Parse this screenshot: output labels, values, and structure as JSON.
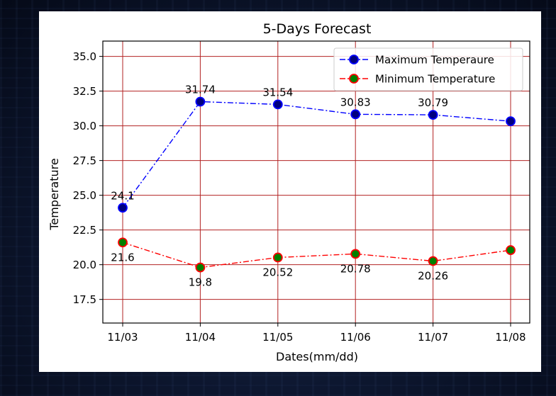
{
  "chart_data": {
    "type": "line",
    "title": "5-Days Forecast",
    "xlabel": "Dates(mm/dd)",
    "ylabel": "Temperature",
    "categories": [
      "11/03",
      "11/04",
      "11/05",
      "11/06",
      "11/07",
      "11/08"
    ],
    "ylim": [
      15.8,
      36.1
    ],
    "yticks": [
      "17.5",
      "20.0",
      "22.5",
      "25.0",
      "27.5",
      "30.0",
      "32.5",
      "35.0"
    ],
    "grid": true,
    "legend_position": "top-right",
    "series": [
      {
        "name": "Maximum Temperaure",
        "values": [
          24.1,
          31.74,
          31.54,
          30.83,
          30.79,
          30.33
        ],
        "labels": [
          "24.1",
          "31.74",
          "31.54",
          "30.83",
          "30.79",
          ""
        ],
        "line_color": "#0000ff",
        "marker_face": "#000080",
        "marker_edge": "#0000ff"
      },
      {
        "name": "Minimum Temperature",
        "values": [
          21.6,
          19.8,
          20.52,
          20.78,
          20.26,
          21.05
        ],
        "labels": [
          "21.6",
          "19.8",
          "20.52",
          "20.78",
          "20.26",
          ""
        ],
        "line_color": "#ff0000",
        "marker_face": "#008000",
        "marker_edge": "#ff0000"
      }
    ],
    "grid_color": "#b22222"
  }
}
